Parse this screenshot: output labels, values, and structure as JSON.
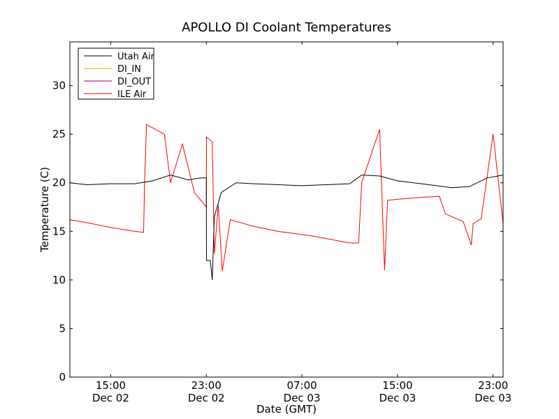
{
  "chart_data": {
    "type": "line",
    "title": "APOLLO DI Coolant Temperatures",
    "xlabel": "Date (GMT)",
    "ylabel": "Temperature (C)",
    "ylim": [
      0,
      34.5
    ],
    "xlim": [
      "Dec 02 11:35",
      "Dec 03 23:50"
    ],
    "grid": false,
    "legend_position": "upper-left",
    "y_ticks": [
      "0",
      "5",
      "10",
      "15",
      "20",
      "25",
      "30"
    ],
    "x_ticks": [
      {
        "time": "15:00",
        "date": "Dec 02"
      },
      {
        "time": "23:00",
        "date": "Dec 02"
      },
      {
        "time": "07:00",
        "date": "Dec 03"
      },
      {
        "time": "15:00",
        "date": "Dec 03"
      },
      {
        "time": "23:00",
        "date": "Dec 03"
      }
    ],
    "series": [
      {
        "name": "Utah Air",
        "color": "#000000"
      },
      {
        "name": "DI_IN",
        "color": "#e8a000"
      },
      {
        "name": "DI_OUT",
        "color": "#800080"
      },
      {
        "name": "ILE Air",
        "color": "#ff0000"
      }
    ],
    "utah_air_points": [
      [
        "Dec 02 11:35",
        20.0
      ],
      [
        "Dec 02 13:00",
        19.8
      ],
      [
        "Dec 02 15:00",
        19.9
      ],
      [
        "Dec 02 17:00",
        19.9
      ],
      [
        "Dec 02 18:30",
        20.2
      ],
      [
        "Dec 02 20:00",
        20.8
      ],
      [
        "Dec 02 21:30",
        20.3
      ],
      [
        "Dec 02 22:30",
        20.5
      ],
      [
        "Dec 02 23:00",
        20.5
      ],
      [
        "Dec 02 23:01",
        12.0
      ],
      [
        "Dec 02 23:20",
        12.0
      ],
      [
        "Dec 02 23:30",
        10.0
      ],
      [
        "Dec 02 23:40",
        16.5
      ],
      [
        "Dec 03 00:15",
        19.0
      ],
      [
        "Dec 03 01:30",
        20.0
      ],
      [
        "Dec 03 03:00",
        19.9
      ],
      [
        "Dec 03 05:00",
        19.8
      ],
      [
        "Dec 03 07:00",
        19.7
      ],
      [
        "Dec 03 09:00",
        19.8
      ],
      [
        "Dec 03 11:00",
        19.9
      ],
      [
        "Dec 03 12:00",
        20.8
      ],
      [
        "Dec 03 13:30",
        20.7
      ],
      [
        "Dec 03 15:00",
        20.2
      ],
      [
        "Dec 03 17:00",
        19.9
      ],
      [
        "Dec 03 19:30",
        19.5
      ],
      [
        "Dec 03 21:00",
        19.6
      ],
      [
        "Dec 03 22:30",
        20.5
      ],
      [
        "Dec 03 23:50",
        20.8
      ]
    ],
    "ile_air_points": [
      [
        "Dec 02 11:35",
        16.2
      ],
      [
        "Dec 02 13:00",
        15.9
      ],
      [
        "Dec 02 15:00",
        15.4
      ],
      [
        "Dec 02 17:00",
        15.0
      ],
      [
        "Dec 02 17:45",
        14.9
      ],
      [
        "Dec 02 17:50",
        20.0
      ],
      [
        "Dec 02 18:00",
        26.0
      ],
      [
        "Dec 02 19:30",
        25.0
      ],
      [
        "Dec 02 20:00",
        20.0
      ],
      [
        "Dec 02 21:00",
        24.0
      ],
      [
        "Dec 02 22:00",
        19.0
      ],
      [
        "Dec 02 23:00",
        17.5
      ],
      [
        "Dec 02 23:01",
        24.7
      ],
      [
        "Dec 02 23:30",
        24.2
      ],
      [
        "Dec 02 23:40",
        12.7
      ],
      [
        "Dec 03 00:00",
        17.7
      ],
      [
        "Dec 03 00:20",
        10.9
      ],
      [
        "Dec 03 01:00",
        16.2
      ],
      [
        "Dec 03 03:00",
        15.5
      ],
      [
        "Dec 03 05:00",
        15.0
      ],
      [
        "Dec 03 08:00",
        14.5
      ],
      [
        "Dec 03 11:00",
        13.8
      ],
      [
        "Dec 03 11:45",
        13.8
      ],
      [
        "Dec 03 12:00",
        20.0
      ],
      [
        "Dec 03 13:30",
        25.5
      ],
      [
        "Dec 03 13:55",
        11.0
      ],
      [
        "Dec 03 14:10",
        18.2
      ],
      [
        "Dec 03 15:00",
        18.3
      ],
      [
        "Dec 03 17:00",
        18.5
      ],
      [
        "Dec 03 18:30",
        18.6
      ],
      [
        "Dec 03 19:00",
        16.8
      ],
      [
        "Dec 03 20:30",
        16.0
      ],
      [
        "Dec 03 21:10",
        13.6
      ],
      [
        "Dec 03 21:20",
        15.8
      ],
      [
        "Dec 03 22:00",
        16.3
      ],
      [
        "Dec 03 23:00",
        25.0
      ],
      [
        "Dec 03 23:50",
        15.8
      ]
    ]
  }
}
